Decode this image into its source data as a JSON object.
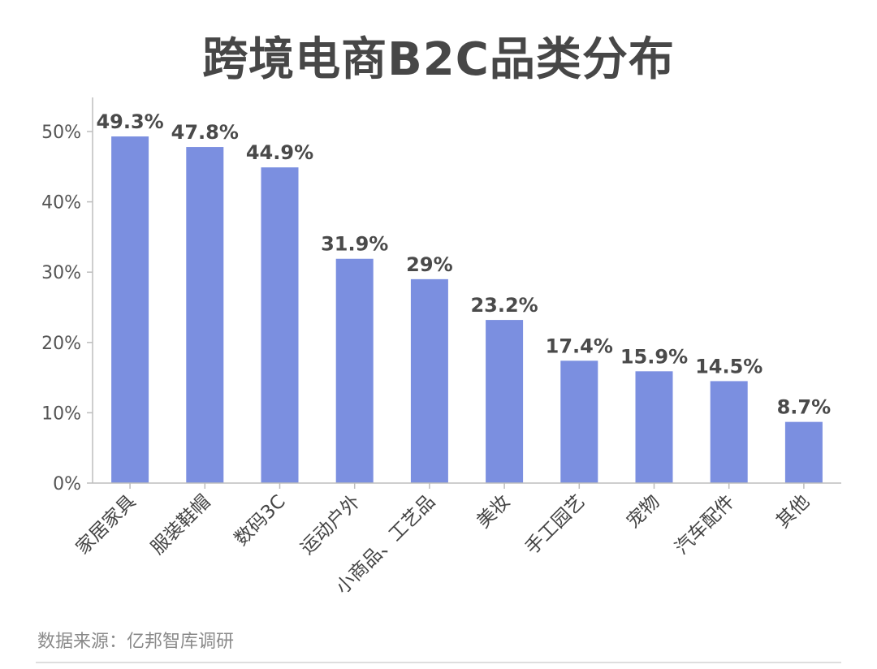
{
  "chart_data": {
    "type": "bar",
    "title": "跨境电商B2C品类分布",
    "categories": [
      "家居家具",
      "服装鞋帽",
      "数码3C",
      "运动户外",
      "小商品、工艺品",
      "美妆",
      "手工园艺",
      "宠物",
      "汽车配件",
      "其他"
    ],
    "values": [
      49.3,
      47.8,
      44.9,
      31.9,
      29,
      23.2,
      17.4,
      15.9,
      14.5,
      8.7
    ],
    "value_labels": [
      "49.3%",
      "47.8%",
      "44.9%",
      "31.9%",
      "29%",
      "23.2%",
      "17.4%",
      "15.9%",
      "14.5%",
      "8.7%"
    ],
    "y_ticks": [
      0,
      10,
      20,
      30,
      40,
      50
    ],
    "y_tick_labels": [
      "0%",
      "10%",
      "20%",
      "30%",
      "40%",
      "50%"
    ],
    "ylim": [
      0,
      50
    ],
    "xlabel": "",
    "ylabel": "",
    "grid": false,
    "bar_color": "#7b8fe0"
  },
  "source": "数据来源：亿邦智库调研"
}
